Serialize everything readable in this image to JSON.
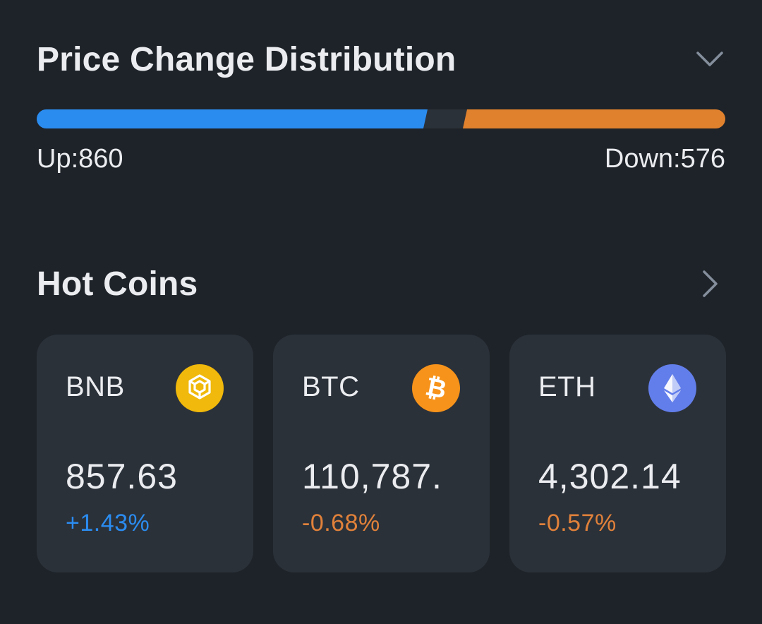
{
  "distribution": {
    "title": "Price Change Distribution",
    "up_label": "Up:860",
    "down_label": "Down:576",
    "up_count": 860,
    "down_count": 576,
    "up_color": "#2b8cf0",
    "down_color": "#e0812e",
    "gap_color": "#2b3139",
    "toggle_icon": "chevron-down-icon"
  },
  "hot_coins": {
    "title": "Hot Coins",
    "more_icon": "chevron-right-icon",
    "coins": [
      {
        "symbol": "BNB",
        "price": "857.63",
        "change": "+1.43%",
        "direction": "up",
        "icon": "bnb-icon",
        "icon_color": "#f0b90b"
      },
      {
        "symbol": "BTC",
        "price": "110,787.",
        "change": "-0.68%",
        "direction": "down",
        "icon": "bitcoin-icon",
        "icon_color": "#f7931a"
      },
      {
        "symbol": "ETH",
        "price": "4,302.14",
        "change": "-0.57%",
        "direction": "down",
        "icon": "ethereum-icon",
        "icon_color": "#627eea"
      }
    ]
  }
}
